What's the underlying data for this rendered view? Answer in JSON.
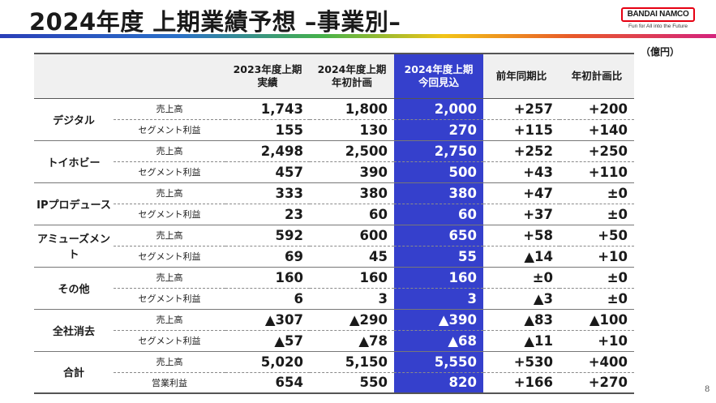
{
  "title": "2024年度 上期業績予想 –事業別–",
  "logo": {
    "name": "BANDAI NAMCO",
    "tagline": "Fun for All into the Future"
  },
  "unit": "（億円）",
  "page_number": "8",
  "table": {
    "headers": [
      {
        "line1": "2023年度上期",
        "line2": "実績"
      },
      {
        "line1": "2024年度上期",
        "line2": "年初計画"
      },
      {
        "line1": "2024年度上期",
        "line2": "今回見込"
      },
      {
        "line1": "前年同期比",
        "line2": ""
      },
      {
        "line1": "年初計画比",
        "line2": ""
      }
    ],
    "segments": [
      {
        "name": "デジタル",
        "rows": [
          {
            "metric": "売上高",
            "values": [
              "1,743",
              "1,800",
              "2,000",
              "+257",
              "+200"
            ]
          },
          {
            "metric": "セグメント利益",
            "values": [
              "155",
              "130",
              "270",
              "+115",
              "+140"
            ]
          }
        ]
      },
      {
        "name": "トイホビー",
        "rows": [
          {
            "metric": "売上高",
            "values": [
              "2,498",
              "2,500",
              "2,750",
              "+252",
              "+250"
            ]
          },
          {
            "metric": "セグメント利益",
            "values": [
              "457",
              "390",
              "500",
              "+43",
              "+110"
            ]
          }
        ]
      },
      {
        "name": "IPプロデュース",
        "rows": [
          {
            "metric": "売上高",
            "values": [
              "333",
              "380",
              "380",
              "+47",
              "±0"
            ]
          },
          {
            "metric": "セグメント利益",
            "values": [
              "23",
              "60",
              "60",
              "+37",
              "±0"
            ]
          }
        ]
      },
      {
        "name": "アミューズメント",
        "rows": [
          {
            "metric": "売上高",
            "values": [
              "592",
              "600",
              "650",
              "+58",
              "+50"
            ]
          },
          {
            "metric": "セグメント利益",
            "values": [
              "69",
              "45",
              "55",
              "▲14",
              "+10"
            ]
          }
        ]
      },
      {
        "name": "その他",
        "rows": [
          {
            "metric": "売上高",
            "values": [
              "160",
              "160",
              "160",
              "±0",
              "±0"
            ]
          },
          {
            "metric": "セグメント利益",
            "values": [
              "6",
              "3",
              "3",
              "▲3",
              "±0"
            ]
          }
        ]
      },
      {
        "name": "全社消去",
        "rows": [
          {
            "metric": "売上高",
            "values": [
              "▲307",
              "▲290",
              "▲390",
              "▲83",
              "▲100"
            ]
          },
          {
            "metric": "セグメント利益",
            "values": [
              "▲57",
              "▲78",
              "▲68",
              "▲11",
              "+10"
            ]
          }
        ]
      },
      {
        "name": "合計",
        "rows": [
          {
            "metric": "売上高",
            "values": [
              "5,020",
              "5,150",
              "5,550",
              "+530",
              "+400"
            ]
          },
          {
            "metric": "営業利益",
            "values": [
              "654",
              "550",
              "820",
              "+166",
              "+270"
            ]
          }
        ]
      }
    ]
  },
  "colors": {
    "highlight_column": "#3540cc",
    "header_background": "#f0f0f0",
    "logo_border": "#e60012"
  }
}
